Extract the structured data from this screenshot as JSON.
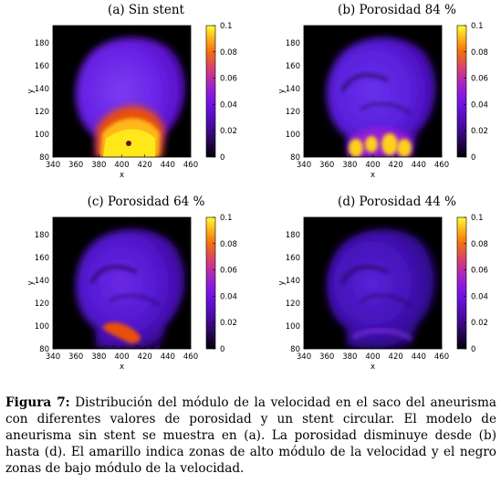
{
  "panels": [
    {
      "id": "a",
      "title": "(a) Sin stent",
      "porosity_level": 0,
      "plot": {
        "type": "heatmap",
        "x": {
          "label": "x",
          "range": [
            340,
            460
          ],
          "ticks": [
            "340",
            "360",
            "380",
            "400",
            "420",
            "440",
            "460"
          ]
        },
        "y": {
          "label": "y",
          "range": [
            80,
            195
          ],
          "ticks": [
            "80",
            "100",
            "120",
            "140",
            "160",
            "180"
          ]
        },
        "colorbar": {
          "range": [
            0,
            0.1
          ],
          "ticks": [
            "0",
            "0.02",
            "0.04",
            "0.06",
            "0.08",
            "0.1"
          ]
        }
      }
    },
    {
      "id": "b",
      "title": "(b) Porosidad 84 %",
      "porosity_level": 1,
      "plot": {
        "type": "heatmap",
        "x": {
          "label": "x",
          "range": [
            340,
            460
          ],
          "ticks": [
            "340",
            "360",
            "380",
            "400",
            "420",
            "440",
            "460"
          ]
        },
        "y": {
          "label": "y",
          "range": [
            80,
            195
          ],
          "ticks": [
            "80",
            "100",
            "120",
            "140",
            "160",
            "180"
          ]
        },
        "colorbar": {
          "range": [
            0,
            0.1
          ],
          "ticks": [
            "0",
            "0.02",
            "0.04",
            "0.06",
            "0.08",
            "0.1"
          ]
        }
      }
    },
    {
      "id": "c",
      "title": "(c) Porosidad 64 %",
      "porosity_level": 2,
      "plot": {
        "type": "heatmap",
        "x": {
          "label": "x",
          "range": [
            340,
            460
          ],
          "ticks": [
            "340",
            "360",
            "380",
            "400",
            "420",
            "440",
            "460"
          ]
        },
        "y": {
          "label": "y",
          "range": [
            80,
            195
          ],
          "ticks": [
            "80",
            "100",
            "120",
            "140",
            "160",
            "180"
          ]
        },
        "colorbar": {
          "range": [
            0,
            0.1
          ],
          "ticks": [
            "0",
            "0.02",
            "0.04",
            "0.06",
            "0.08",
            "0.1"
          ]
        }
      }
    },
    {
      "id": "d",
      "title": "(d) Porosidad 44 %",
      "porosity_level": 3,
      "plot": {
        "type": "heatmap",
        "x": {
          "label": "x",
          "range": [
            340,
            460
          ],
          "ticks": [
            "340",
            "360",
            "380",
            "400",
            "420",
            "440",
            "460"
          ]
        },
        "y": {
          "label": "y",
          "range": [
            80,
            195
          ],
          "ticks": [
            "80",
            "100",
            "120",
            "140",
            "160",
            "180"
          ]
        },
        "colorbar": {
          "range": [
            0,
            0.1
          ],
          "ticks": [
            "0",
            "0.02",
            "0.04",
            "0.06",
            "0.08",
            "0.1"
          ]
        }
      }
    }
  ],
  "caption": {
    "label": "Figura 7:",
    "text": " Distribución del módulo de la velocidad en el saco del aneurisma con diferentes valores de porosidad y un stent circular. El modelo de aneurisma sin stent se muestra en (a). La porosidad disminuye desde (b) hasta (d). El amarillo indica zonas de alto módulo de la velocidad y el negro zonas de bajo módulo de la velocidad."
  },
  "colors": {
    "black": "#000000",
    "purple": "#5a1ce0",
    "magenta": "#9a1fd6",
    "orange": "#e8500c",
    "yellow": "#ffe81a"
  }
}
